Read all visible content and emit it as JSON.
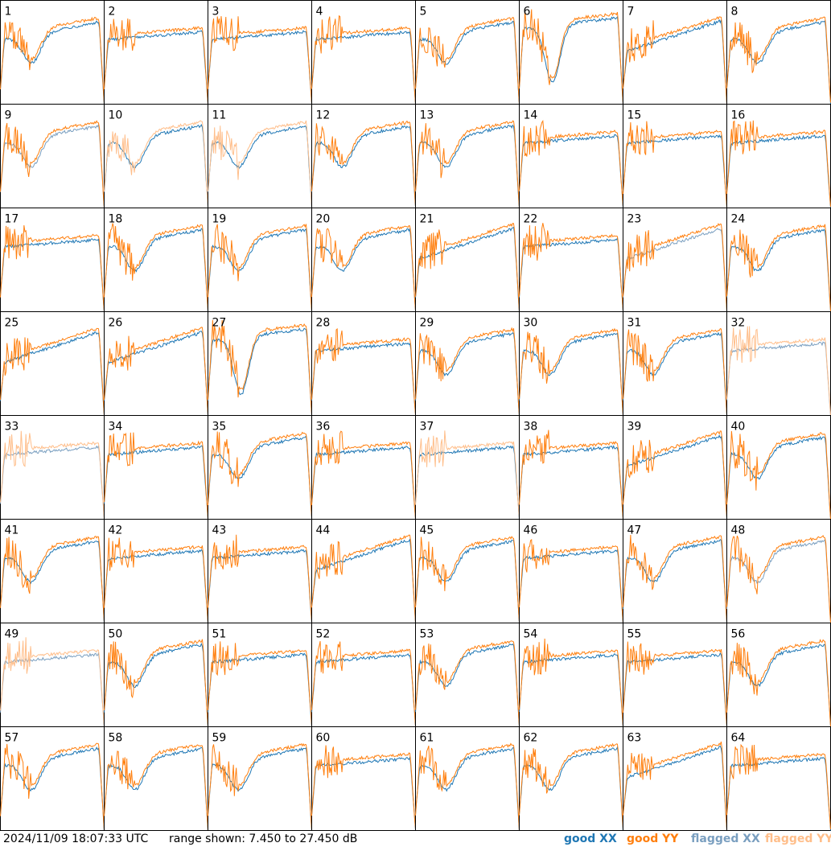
{
  "footer": {
    "timestamp": "2024/11/09 18:07:33 UTC",
    "range_text": "range shown: 7.450 to 27.450 dB"
  },
  "legend": [
    {
      "label": "good XX",
      "color": "#1f77b4"
    },
    {
      "label": "good YY",
      "color": "#ff7f0e"
    },
    {
      "label": "flagged XX",
      "color": "#7a9fc0"
    },
    {
      "label": "flagged YY",
      "color": "#ffbe8a"
    }
  ],
  "chart_data": {
    "type": "line",
    "title": "",
    "ylim": [
      7.45,
      27.45
    ],
    "yunit": "dB",
    "layout": "8x8 small multiples",
    "panels": [
      {
        "id": 1,
        "xx": "good",
        "yy": "good",
        "shape": "dip"
      },
      {
        "id": 2,
        "xx": "good",
        "yy": "good",
        "shape": "flat"
      },
      {
        "id": 3,
        "xx": "good",
        "yy": "good",
        "shape": "flat"
      },
      {
        "id": 4,
        "xx": "good",
        "yy": "good",
        "shape": "flat"
      },
      {
        "id": 5,
        "xx": "good",
        "yy": "good",
        "shape": "dip"
      },
      {
        "id": 6,
        "xx": "good",
        "yy": "good",
        "shape": "deepdip"
      },
      {
        "id": 7,
        "xx": "good",
        "yy": "good",
        "shape": "rising"
      },
      {
        "id": 8,
        "xx": "good",
        "yy": "good",
        "shape": "dip"
      },
      {
        "id": 9,
        "xx": "flagged",
        "yy": "good",
        "shape": "dip"
      },
      {
        "id": 10,
        "xx": "good",
        "yy": "flagged",
        "shape": "dip"
      },
      {
        "id": 11,
        "xx": "good",
        "yy": "flagged",
        "shape": "dip"
      },
      {
        "id": 12,
        "xx": "good",
        "yy": "good",
        "shape": "dip"
      },
      {
        "id": 13,
        "xx": "good",
        "yy": "good",
        "shape": "dip"
      },
      {
        "id": 14,
        "xx": "good",
        "yy": "good",
        "shape": "flat"
      },
      {
        "id": 15,
        "xx": "good",
        "yy": "good",
        "shape": "flat"
      },
      {
        "id": 16,
        "xx": "good",
        "yy": "good",
        "shape": "flat"
      },
      {
        "id": 17,
        "xx": "good",
        "yy": "good",
        "shape": "flat"
      },
      {
        "id": 18,
        "xx": "good",
        "yy": "good",
        "shape": "dip"
      },
      {
        "id": 19,
        "xx": "good",
        "yy": "good",
        "shape": "dip"
      },
      {
        "id": 20,
        "xx": "good",
        "yy": "good",
        "shape": "dip"
      },
      {
        "id": 21,
        "xx": "good",
        "yy": "good",
        "shape": "rising"
      },
      {
        "id": 22,
        "xx": "good",
        "yy": "good",
        "shape": "flat"
      },
      {
        "id": 23,
        "xx": "flagged",
        "yy": "good",
        "shape": "rising"
      },
      {
        "id": 24,
        "xx": "good",
        "yy": "good",
        "shape": "dip"
      },
      {
        "id": 25,
        "xx": "good",
        "yy": "good",
        "shape": "rising"
      },
      {
        "id": 26,
        "xx": "good",
        "yy": "good",
        "shape": "rising"
      },
      {
        "id": 27,
        "xx": "good",
        "yy": "good",
        "shape": "deepdip"
      },
      {
        "id": 28,
        "xx": "good",
        "yy": "good",
        "shape": "flat"
      },
      {
        "id": 29,
        "xx": "good",
        "yy": "good",
        "shape": "dip"
      },
      {
        "id": 30,
        "xx": "good",
        "yy": "good",
        "shape": "dip"
      },
      {
        "id": 31,
        "xx": "good",
        "yy": "good",
        "shape": "dip"
      },
      {
        "id": 32,
        "xx": "flagged",
        "yy": "flagged",
        "shape": "flat"
      },
      {
        "id": 33,
        "xx": "flagged",
        "yy": "flagged",
        "shape": "flat"
      },
      {
        "id": 34,
        "xx": "good",
        "yy": "good",
        "shape": "flat"
      },
      {
        "id": 35,
        "xx": "good",
        "yy": "good",
        "shape": "dip"
      },
      {
        "id": 36,
        "xx": "good",
        "yy": "good",
        "shape": "flat"
      },
      {
        "id": 37,
        "xx": "good",
        "yy": "flagged",
        "shape": "flat"
      },
      {
        "id": 38,
        "xx": "good",
        "yy": "good",
        "shape": "flat"
      },
      {
        "id": 39,
        "xx": "good",
        "yy": "good",
        "shape": "rising"
      },
      {
        "id": 40,
        "xx": "good",
        "yy": "good",
        "shape": "dip"
      },
      {
        "id": 41,
        "xx": "good",
        "yy": "good",
        "shape": "dip"
      },
      {
        "id": 42,
        "xx": "good",
        "yy": "good",
        "shape": "flat"
      },
      {
        "id": 43,
        "xx": "good",
        "yy": "good",
        "shape": "flat"
      },
      {
        "id": 44,
        "xx": "good",
        "yy": "good",
        "shape": "rising"
      },
      {
        "id": 45,
        "xx": "good",
        "yy": "good",
        "shape": "dip"
      },
      {
        "id": 46,
        "xx": "good",
        "yy": "good",
        "shape": "flat"
      },
      {
        "id": 47,
        "xx": "good",
        "yy": "good",
        "shape": "dip"
      },
      {
        "id": 48,
        "xx": "flagged",
        "yy": "good",
        "shape": "dip"
      },
      {
        "id": 49,
        "xx": "flagged",
        "yy": "flagged",
        "shape": "flat"
      },
      {
        "id": 50,
        "xx": "good",
        "yy": "good",
        "shape": "dip"
      },
      {
        "id": 51,
        "xx": "good",
        "yy": "good",
        "shape": "flat"
      },
      {
        "id": 52,
        "xx": "good",
        "yy": "good",
        "shape": "flat"
      },
      {
        "id": 53,
        "xx": "good",
        "yy": "good",
        "shape": "dip"
      },
      {
        "id": 54,
        "xx": "good",
        "yy": "good",
        "shape": "flat"
      },
      {
        "id": 55,
        "xx": "good",
        "yy": "good",
        "shape": "flat"
      },
      {
        "id": 56,
        "xx": "good",
        "yy": "good",
        "shape": "dip"
      },
      {
        "id": 57,
        "xx": "good",
        "yy": "good",
        "shape": "dip"
      },
      {
        "id": 58,
        "xx": "good",
        "yy": "good",
        "shape": "dip"
      },
      {
        "id": 59,
        "xx": "good",
        "yy": "good",
        "shape": "dip"
      },
      {
        "id": 60,
        "xx": "good",
        "yy": "good",
        "shape": "flat"
      },
      {
        "id": 61,
        "xx": "good",
        "yy": "good",
        "shape": "dip"
      },
      {
        "id": 62,
        "xx": "good",
        "yy": "good",
        "shape": "dip"
      },
      {
        "id": 63,
        "xx": "good",
        "yy": "good",
        "shape": "rising"
      },
      {
        "id": 64,
        "xx": "good",
        "yy": "good",
        "shape": "flat"
      }
    ]
  }
}
